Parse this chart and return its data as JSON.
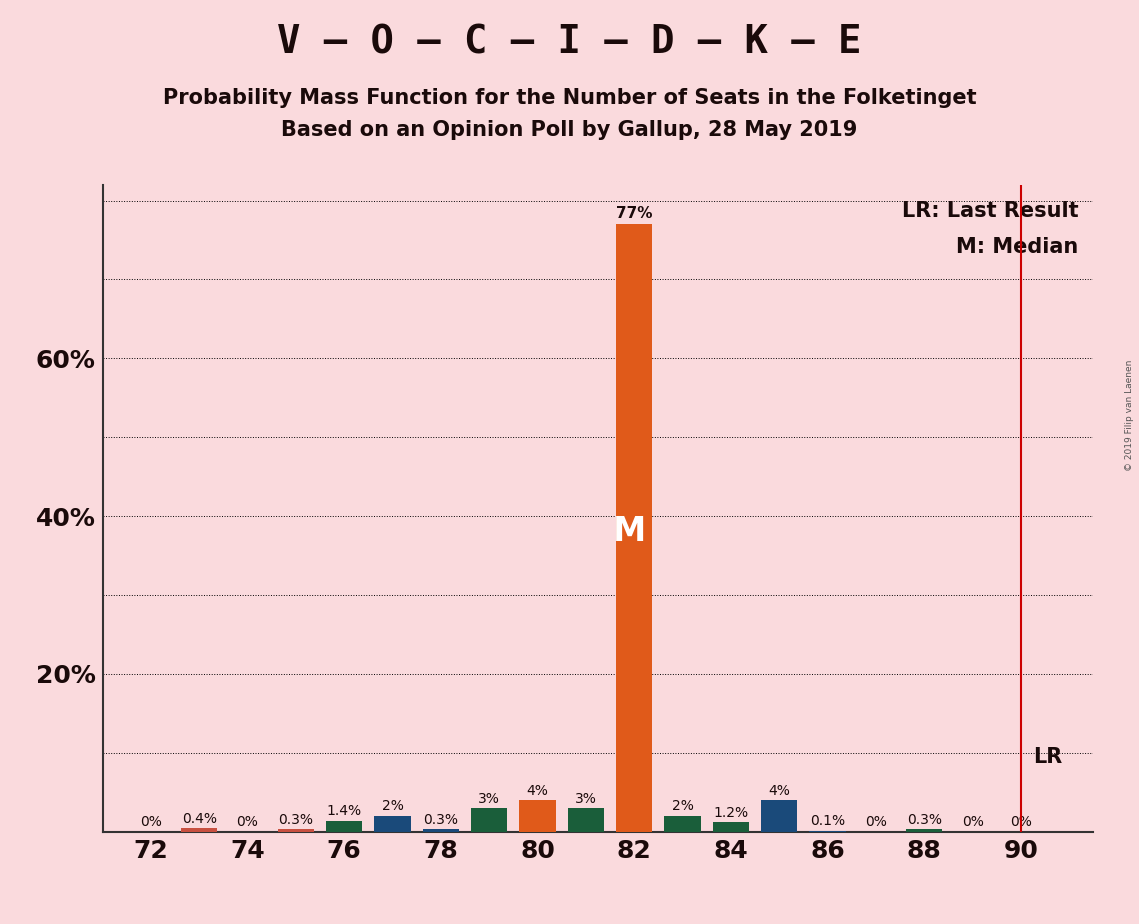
{
  "title": "V – O – C – I – D – K – E",
  "subtitle1": "Probability Mass Function for the Number of Seats in the Folketinget",
  "subtitle2": "Based on an Opinion Poll by Gallup, 28 May 2019",
  "copyright": "© 2019 Filip van Laenen",
  "background_color": "#fadadd",
  "color_map": {
    "73": "#c85040",
    "75": "#c85040",
    "76": "#1a5e3a",
    "77": "#1a4a7a",
    "78": "#1a4a7a",
    "79": "#1a5e3a",
    "80": "#e05a1a",
    "81": "#1a5e3a",
    "82": "#e05a1a",
    "83": "#1a5e3a",
    "84": "#1a5e3a",
    "85": "#1a4a7a",
    "86": "#1a4a7a",
    "88": "#1a5e3a"
  },
  "bar_data": [
    {
      "seat": 72,
      "value": 0.0
    },
    {
      "seat": 73,
      "value": 0.4
    },
    {
      "seat": 74,
      "value": 0.0
    },
    {
      "seat": 75,
      "value": 0.3
    },
    {
      "seat": 76,
      "value": 1.4
    },
    {
      "seat": 77,
      "value": 2.0
    },
    {
      "seat": 78,
      "value": 0.3
    },
    {
      "seat": 79,
      "value": 3.0
    },
    {
      "seat": 80,
      "value": 4.0
    },
    {
      "seat": 81,
      "value": 3.0
    },
    {
      "seat": 82,
      "value": 77.0
    },
    {
      "seat": 83,
      "value": 2.0
    },
    {
      "seat": 84,
      "value": 1.2
    },
    {
      "seat": 85,
      "value": 4.0
    },
    {
      "seat": 86,
      "value": 0.1
    },
    {
      "seat": 87,
      "value": 0.0
    },
    {
      "seat": 88,
      "value": 0.3
    },
    {
      "seat": 89,
      "value": 0.0
    },
    {
      "seat": 90,
      "value": 0.0
    }
  ],
  "labels": {
    "72": "0%",
    "73": "0.4%",
    "74": "0%",
    "75": "0.3%",
    "76": "1.4%",
    "77": "2%",
    "78": "0.3%",
    "79": "3%",
    "80": "4%",
    "81": "3%",
    "82": "77%",
    "83": "2%",
    "84": "1.2%",
    "85": "4%",
    "86": "0.1%",
    "87": "0%",
    "88": "0.3%",
    "89": "0%",
    "90": "0%"
  },
  "median_seat": 82,
  "last_result_seat": 90,
  "ymax": 82,
  "xmin": 71,
  "xmax": 91.5,
  "xticks": [
    72,
    74,
    76,
    78,
    80,
    82,
    84,
    86,
    88,
    90
  ],
  "ytick_positions": [
    0,
    10,
    20,
    30,
    40,
    50,
    60,
    70,
    80
  ],
  "ytick_labels": [
    "",
    "",
    "20%",
    "",
    "40%",
    "",
    "60%",
    "",
    ""
  ],
  "grid_lines": [
    10,
    20,
    30,
    40,
    50,
    60,
    70,
    80
  ],
  "title_fontsize": 28,
  "subtitle_fontsize": 15,
  "axis_tick_fontsize": 18,
  "bar_label_fontsize": 10,
  "legend_fontsize": 15,
  "lr_line_color": "#cc0000",
  "axis_line_color": "#333333",
  "text_color": "#1a0a0a",
  "copyright_color": "#555555",
  "bar_width": 0.75
}
